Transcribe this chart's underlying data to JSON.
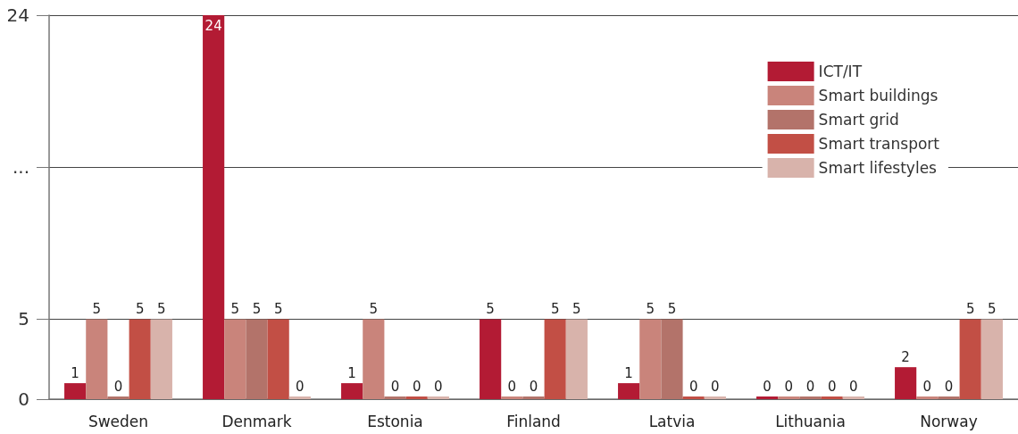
{
  "chart_data": {
    "type": "bar",
    "categories": [
      "Sweden",
      "Denmark",
      "Estonia",
      "Finland",
      "Latvia",
      "Lithuania",
      "Norway"
    ],
    "series": [
      {
        "name": "ICT/IT",
        "color": "#b31b34",
        "values": [
          1,
          24,
          1,
          5,
          1,
          0,
          2
        ]
      },
      {
        "name": "Smart buildings",
        "color": "#c9847b",
        "values": [
          5,
          5,
          5,
          0,
          5,
          0,
          0
        ]
      },
      {
        "name": "Smart grid",
        "color": "#b3736a",
        "values": [
          0,
          5,
          0,
          0,
          5,
          0,
          0
        ]
      },
      {
        "name": "Smart transport",
        "color": "#c24f45",
        "values": [
          5,
          5,
          0,
          5,
          0,
          0,
          5
        ]
      },
      {
        "name": "Smart lifestyles",
        "color": "#d8b3ab",
        "values": [
          5,
          0,
          0,
          5,
          0,
          0,
          5
        ]
      }
    ],
    "ylim": [
      0,
      24
    ],
    "yticks": [
      0,
      5,
      {
        "value": 14.5,
        "label": "..."
      },
      24
    ],
    "grid": "y",
    "legend": "top right",
    "data_labels": true
  }
}
